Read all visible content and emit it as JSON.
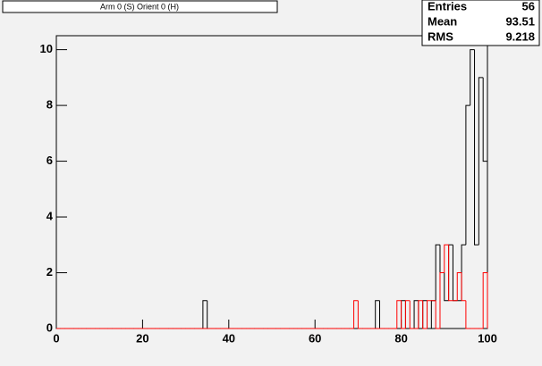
{
  "chart_data": {
    "type": "histogram",
    "title": "Arm 0 (S) Orient 0 (H)",
    "bins": [
      0,
      1,
      2,
      3,
      4,
      5,
      6,
      7,
      8,
      9,
      10,
      11,
      12,
      13,
      14,
      15,
      16,
      17,
      18,
      19,
      20,
      21,
      22,
      23,
      24,
      25,
      26,
      27,
      28,
      29,
      30,
      31,
      32,
      33,
      34,
      35,
      36,
      37,
      38,
      39,
      40,
      41,
      42,
      43,
      44,
      45,
      46,
      47,
      48,
      49,
      50,
      51,
      52,
      53,
      54,
      55,
      56,
      57,
      58,
      59,
      60,
      61,
      62,
      63,
      64,
      65,
      66,
      67,
      68,
      69,
      70,
      71,
      72,
      73,
      74,
      75,
      76,
      77,
      78,
      79,
      80,
      81,
      82,
      83,
      84,
      85,
      86,
      87,
      88,
      89,
      90,
      91,
      92,
      93,
      94,
      95,
      96,
      97,
      98,
      99,
      100
    ],
    "series": [
      {
        "color": "#000000",
        "values": [
          0,
          0,
          0,
          0,
          0,
          0,
          0,
          0,
          0,
          0,
          0,
          0,
          0,
          0,
          0,
          0,
          0,
          0,
          0,
          0,
          0,
          0,
          0,
          0,
          0,
          0,
          0,
          0,
          0,
          0,
          0,
          0,
          0,
          0,
          1,
          0,
          0,
          0,
          0,
          0,
          0,
          0,
          0,
          0,
          0,
          0,
          0,
          0,
          0,
          0,
          0,
          0,
          0,
          0,
          0,
          0,
          0,
          0,
          0,
          0,
          0,
          0,
          0,
          0,
          0,
          0,
          0,
          0,
          0,
          0,
          0,
          0,
          0,
          0,
          1,
          0,
          0,
          0,
          0,
          0,
          1,
          0,
          0,
          1,
          0,
          1,
          0,
          1,
          3,
          2,
          1,
          3,
          1,
          1,
          3,
          8,
          10,
          3,
          9,
          6
        ]
      },
      {
        "color": "#ff0000",
        "values": [
          0,
          0,
          0,
          0,
          0,
          0,
          0,
          0,
          0,
          0,
          0,
          0,
          0,
          0,
          0,
          0,
          0,
          0,
          0,
          0,
          0,
          0,
          0,
          0,
          0,
          0,
          0,
          0,
          0,
          0,
          0,
          0,
          0,
          0,
          0,
          0,
          0,
          0,
          0,
          0,
          0,
          0,
          0,
          0,
          0,
          0,
          0,
          0,
          0,
          0,
          0,
          0,
          0,
          0,
          0,
          0,
          0,
          0,
          0,
          0,
          0,
          0,
          0,
          0,
          0,
          0,
          0,
          0,
          0,
          1,
          0,
          0,
          0,
          0,
          0,
          0,
          0,
          0,
          0,
          1,
          0,
          1,
          0,
          0,
          1,
          0,
          1,
          1,
          0,
          2,
          3,
          1,
          1,
          2,
          1,
          0,
          0,
          0,
          0,
          2
        ]
      }
    ],
    "xlim": [
      0,
      100
    ],
    "xticks": [
      0,
      20,
      40,
      60,
      80,
      100
    ],
    "ylim": [
      0,
      10.5
    ],
    "yticks": [
      0,
      2,
      4,
      6,
      8,
      10
    ],
    "stats": {
      "labels": [
        "Entries",
        "Mean",
        "RMS"
      ],
      "values": [
        56,
        93.51,
        9.218
      ]
    }
  }
}
